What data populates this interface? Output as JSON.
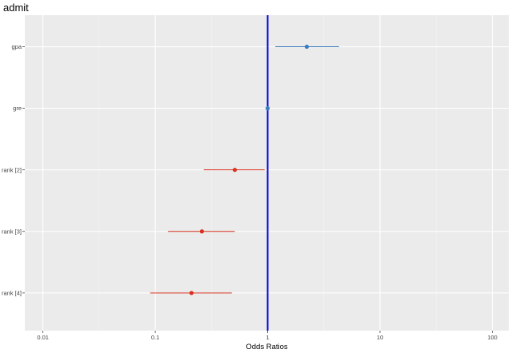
{
  "chart_data": {
    "type": "forest",
    "title": "admit",
    "xlabel": "Odds Ratios",
    "ylabel": "",
    "x_scale": "log10",
    "xlim": [
      0.0069,
      140
    ],
    "x_ticks": [
      0.01,
      0.1,
      1,
      10,
      100
    ],
    "x_tick_labels": [
      "0.01",
      "0.1",
      "1",
      "10",
      "100"
    ],
    "reference_line": {
      "x": 1,
      "color": "#1010dd"
    },
    "grid": true,
    "categories": [
      "gpa",
      "gre",
      "rank [2]",
      "rank [3]",
      "rank [4]"
    ],
    "estimates": [
      2.23,
      1.0,
      0.51,
      0.26,
      0.21
    ],
    "ci_low": [
      1.17,
      1.0,
      0.27,
      0.13,
      0.09
    ],
    "ci_high": [
      4.32,
      1.0,
      0.94,
      0.51,
      0.48
    ],
    "colors": [
      "#3a7bbf",
      "#3a7bbf",
      "#d7301f",
      "#d7301f",
      "#d7301f"
    ]
  },
  "colors": {
    "panel_bg": "#ebebeb",
    "grid_major": "#ffffff",
    "grid_minor": "#f4f4f4"
  }
}
